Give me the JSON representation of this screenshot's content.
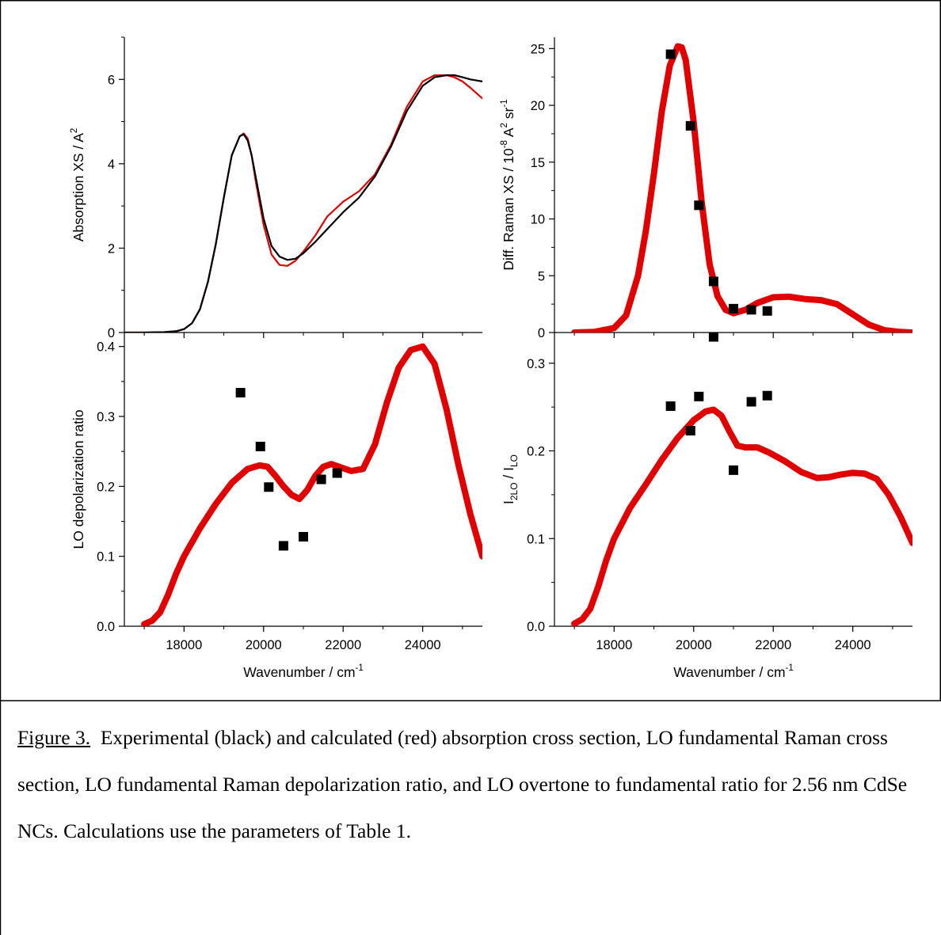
{
  "caption": {
    "label": "Figure 3.",
    "text": "Experimental (black) and calculated (red) absorption cross section, LO fundamental Raman cross section, LO fundamental Raman depolarization ratio, and LO overtone to fundamental ratio for 2.56 nm CdSe NCs.  Calculations use the parameters of Table 1."
  },
  "colors": {
    "experimental": "#000000",
    "calculated": "#e00000",
    "points": "#000000"
  },
  "chart_data": [
    {
      "type": "line",
      "panel": "top-left",
      "xlabel": "",
      "ylabel": "Absorption XS / A²",
      "xlim": [
        16500,
        25500
      ],
      "ylim": [
        0,
        7
      ],
      "x_ticks": [
        18000,
        20000,
        22000,
        24000
      ],
      "y_ticks": [
        0,
        2,
        4,
        6
      ],
      "show_x_tick_labels": false,
      "series": [
        {
          "role": "experimental",
          "x": [
            16500,
            17000,
            17500,
            17800,
            18000,
            18200,
            18400,
            18600,
            18800,
            19000,
            19200,
            19400,
            19500,
            19600,
            19700,
            19800,
            20000,
            20200,
            20400,
            20600,
            20800,
            21000,
            21300,
            21600,
            22000,
            22400,
            22800,
            23200,
            23600,
            24000,
            24300,
            24600,
            24800,
            25000,
            25200,
            25500
          ],
          "y": [
            0.0,
            0.0,
            0.01,
            0.03,
            0.08,
            0.22,
            0.55,
            1.2,
            2.1,
            3.2,
            4.2,
            4.65,
            4.7,
            4.55,
            4.2,
            3.7,
            2.7,
            2.05,
            1.8,
            1.72,
            1.75,
            1.88,
            2.15,
            2.45,
            2.85,
            3.2,
            3.7,
            4.4,
            5.25,
            5.85,
            6.05,
            6.1,
            6.1,
            6.05,
            6.0,
            5.95
          ]
        },
        {
          "role": "calculated",
          "x": [
            16500,
            17000,
            17500,
            17800,
            18000,
            18200,
            18400,
            18600,
            18800,
            19000,
            19200,
            19400,
            19500,
            19600,
            19700,
            19800,
            20000,
            20200,
            20400,
            20600,
            20800,
            21000,
            21300,
            21600,
            22000,
            22400,
            22800,
            23200,
            23600,
            24000,
            24300,
            24600,
            24800,
            25000,
            25200,
            25500
          ],
          "y": [
            0.0,
            0.0,
            0.01,
            0.03,
            0.08,
            0.22,
            0.55,
            1.2,
            2.1,
            3.2,
            4.2,
            4.65,
            4.72,
            4.6,
            4.2,
            3.6,
            2.55,
            1.85,
            1.6,
            1.58,
            1.7,
            1.92,
            2.3,
            2.75,
            3.1,
            3.35,
            3.75,
            4.45,
            5.35,
            5.95,
            6.1,
            6.1,
            6.05,
            5.95,
            5.8,
            5.55
          ]
        }
      ]
    },
    {
      "type": "line",
      "panel": "top-right",
      "xlabel": "",
      "ylabel": "Diff. Raman XS / 10⁻⁸ A² sr⁻¹",
      "xlim": [
        16500,
        25500
      ],
      "ylim": [
        0,
        26
      ],
      "x_ticks": [
        18000,
        20000,
        22000,
        24000
      ],
      "y_ticks": [
        0,
        5,
        10,
        15,
        20,
        25
      ],
      "show_x_tick_labels": false,
      "series": [
        {
          "role": "calculated",
          "x": [
            17000,
            17500,
            18000,
            18300,
            18600,
            18800,
            19000,
            19200,
            19400,
            19600,
            19700,
            19800,
            20000,
            20200,
            20400,
            20600,
            20800,
            21000,
            21300,
            21600,
            22000,
            22400,
            22800,
            23200,
            23600,
            24000,
            24400,
            24800,
            25200,
            25500
          ],
          "y": [
            0.0,
            0.05,
            0.4,
            1.5,
            5.0,
            9.0,
            14.0,
            19.5,
            23.5,
            25.2,
            25.1,
            24.0,
            18.5,
            11.5,
            6.0,
            3.2,
            2.0,
            1.7,
            2.0,
            2.6,
            3.1,
            3.15,
            2.95,
            2.85,
            2.5,
            1.6,
            0.7,
            0.2,
            0.05,
            0.0
          ]
        },
        {
          "role": "experimental",
          "mode": "markers",
          "x": [
            19420,
            19920,
            20130,
            20500,
            21000,
            21450,
            21850
          ],
          "y": [
            24.5,
            18.2,
            11.2,
            4.5,
            2.1,
            2.0,
            1.9
          ]
        }
      ]
    },
    {
      "type": "line",
      "panel": "bottom-left",
      "xlabel": "Wavenumber / cm⁻¹",
      "ylabel": "LO depolarization ratio",
      "xlim": [
        16500,
        25500
      ],
      "ylim": [
        0,
        0.42
      ],
      "x_ticks": [
        18000,
        20000,
        22000,
        24000
      ],
      "y_ticks": [
        0.0,
        0.1,
        0.2,
        0.3,
        0.4
      ],
      "show_x_tick_labels": true,
      "series": [
        {
          "role": "calculated",
          "x": [
            17000,
            17200,
            17400,
            17600,
            17800,
            18000,
            18400,
            18800,
            19200,
            19600,
            19900,
            20100,
            20300,
            20500,
            20700,
            20900,
            21100,
            21300,
            21500,
            21700,
            21900,
            22200,
            22500,
            22800,
            23100,
            23400,
            23700,
            24000,
            24300,
            24600,
            24900,
            25200,
            25500
          ],
          "y": [
            0.003,
            0.008,
            0.02,
            0.045,
            0.075,
            0.1,
            0.14,
            0.175,
            0.205,
            0.225,
            0.23,
            0.228,
            0.215,
            0.2,
            0.188,
            0.182,
            0.195,
            0.215,
            0.228,
            0.232,
            0.228,
            0.222,
            0.225,
            0.26,
            0.32,
            0.37,
            0.395,
            0.4,
            0.375,
            0.31,
            0.23,
            0.16,
            0.1
          ]
        },
        {
          "role": "experimental",
          "mode": "markers",
          "x": [
            19420,
            19920,
            20130,
            20500,
            21000,
            21450,
            21850
          ],
          "y": [
            0.334,
            0.257,
            0.199,
            0.115,
            0.128,
            0.21,
            0.219
          ]
        }
      ]
    },
    {
      "type": "line",
      "panel": "bottom-right",
      "xlabel": "Wavenumber / cm⁻¹",
      "ylabel": "I2LO / ILO",
      "xlim": [
        16500,
        25500
      ],
      "ylim": [
        0,
        0.335
      ],
      "x_ticks": [
        18000,
        20000,
        22000,
        24000
      ],
      "y_ticks": [
        0.0,
        0.1,
        0.2,
        0.3
      ],
      "show_x_tick_labels": true,
      "series": [
        {
          "role": "calculated",
          "x": [
            17000,
            17200,
            17400,
            17600,
            17800,
            18000,
            18400,
            18800,
            19200,
            19600,
            20000,
            20300,
            20500,
            20700,
            20900,
            21100,
            21300,
            21600,
            21900,
            22300,
            22700,
            23100,
            23400,
            23700,
            24000,
            24300,
            24600,
            24900,
            25200,
            25500
          ],
          "y": [
            0.003,
            0.008,
            0.02,
            0.045,
            0.075,
            0.1,
            0.135,
            0.162,
            0.19,
            0.215,
            0.235,
            0.245,
            0.247,
            0.24,
            0.222,
            0.206,
            0.204,
            0.204,
            0.198,
            0.188,
            0.176,
            0.169,
            0.17,
            0.173,
            0.175,
            0.174,
            0.168,
            0.15,
            0.125,
            0.095
          ]
        },
        {
          "role": "experimental",
          "mode": "markers",
          "x": [
            19420,
            19920,
            20130,
            20500,
            21000,
            21450,
            21850
          ],
          "y": [
            0.251,
            0.223,
            0.262,
            0.33,
            0.178,
            0.256,
            0.263
          ]
        }
      ]
    }
  ]
}
